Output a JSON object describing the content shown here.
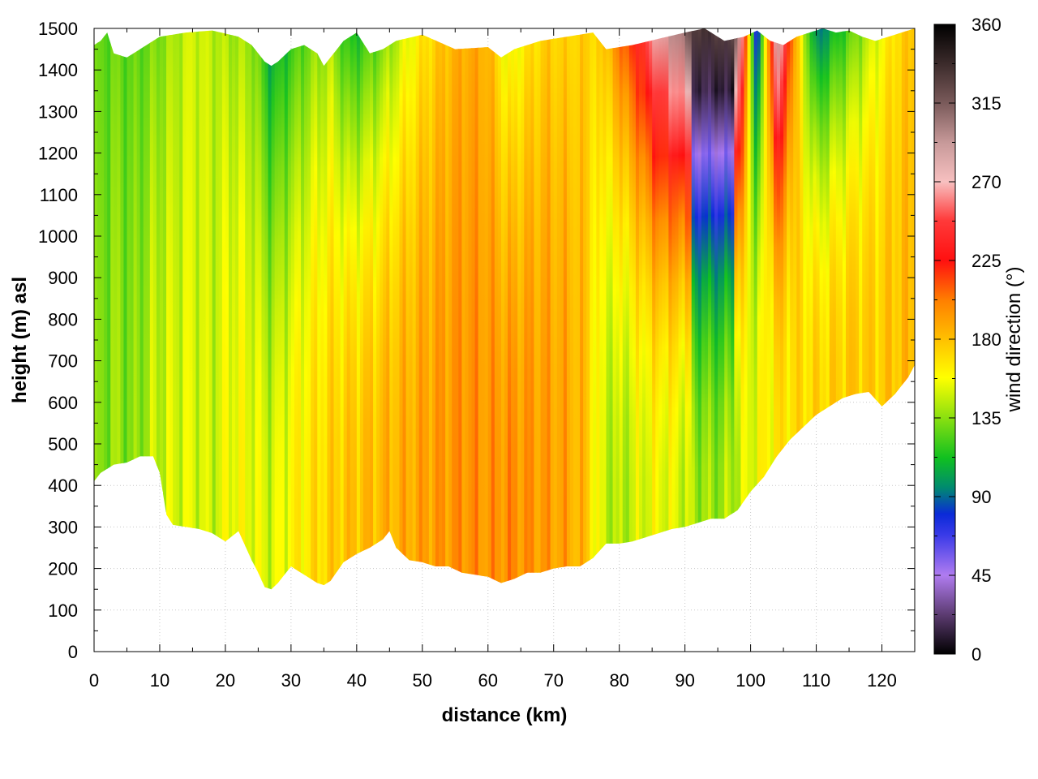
{
  "chart_data": {
    "type": "heatmap",
    "title": "",
    "xlabel": "distance (km)",
    "ylabel": "height (m) asl",
    "colorbar_label": "wind direction (°)",
    "xlim": [
      0,
      125
    ],
    "ylim": [
      0,
      1500
    ],
    "clim": [
      0,
      360
    ],
    "x_ticks": [
      0,
      10,
      20,
      30,
      40,
      50,
      60,
      70,
      80,
      90,
      100,
      110,
      120
    ],
    "y_ticks": [
      0,
      100,
      200,
      300,
      400,
      500,
      600,
      700,
      800,
      900,
      1000,
      1100,
      1200,
      1300,
      1400,
      1500
    ],
    "colorbar_ticks": [
      0,
      45,
      90,
      135,
      180,
      225,
      270,
      315,
      360
    ],
    "grid": true,
    "colormap_stops": [
      {
        "value": 0,
        "color": "#000000"
      },
      {
        "value": 22,
        "color": "#5a3a6e"
      },
      {
        "value": 45,
        "color": "#b07cf0"
      },
      {
        "value": 68,
        "color": "#3a3ae8"
      },
      {
        "value": 80,
        "color": "#0a2ad8"
      },
      {
        "value": 95,
        "color": "#008a70"
      },
      {
        "value": 112,
        "color": "#10c020"
      },
      {
        "value": 135,
        "color": "#8ae010"
      },
      {
        "value": 158,
        "color": "#ffff00"
      },
      {
        "value": 180,
        "color": "#ffc000"
      },
      {
        "value": 202,
        "color": "#ff8000"
      },
      {
        "value": 225,
        "color": "#ff1010"
      },
      {
        "value": 248,
        "color": "#ff3a3a"
      },
      {
        "value": 270,
        "color": "#f7c0c0"
      },
      {
        "value": 292,
        "color": "#c89a9a"
      },
      {
        "value": 315,
        "color": "#7a5a5a"
      },
      {
        "value": 338,
        "color": "#3a2a2a"
      },
      {
        "value": 360,
        "color": "#000000"
      }
    ],
    "terrain_height": {
      "x": [
        0,
        1,
        3,
        5,
        7,
        9,
        10,
        11,
        12,
        14,
        16,
        18,
        20,
        22,
        24,
        25,
        26,
        27,
        28,
        30,
        32,
        34,
        35,
        36,
        38,
        40,
        42,
        44,
        45,
        46,
        48,
        50,
        52,
        54,
        56,
        58,
        60,
        62,
        64,
        66,
        68,
        70,
        72,
        74,
        76,
        78,
        80,
        82,
        84,
        86,
        88,
        90,
        92,
        94,
        96,
        98,
        100,
        102,
        104,
        106,
        108,
        110,
        112,
        114,
        116,
        118,
        120,
        122,
        124,
        125
      ],
      "y": [
        410,
        430,
        450,
        455,
        470,
        470,
        430,
        330,
        305,
        300,
        295,
        285,
        265,
        290,
        220,
        190,
        155,
        150,
        165,
        205,
        185,
        165,
        160,
        170,
        215,
        235,
        250,
        270,
        290,
        250,
        220,
        215,
        205,
        205,
        190,
        185,
        180,
        165,
        175,
        190,
        190,
        200,
        205,
        205,
        225,
        260,
        260,
        265,
        275,
        285,
        295,
        300,
        310,
        320,
        320,
        340,
        385,
        420,
        470,
        510,
        540,
        570,
        590,
        610,
        620,
        625,
        590,
        620,
        660,
        690
      ]
    },
    "column_top_height": {
      "x": [
        0,
        1,
        2,
        3,
        5,
        8,
        10,
        14,
        18,
        22,
        24,
        26,
        27,
        28,
        30,
        32,
        34,
        35,
        36,
        38,
        40,
        42,
        44,
        46,
        50,
        55,
        60,
        62,
        64,
        68,
        72,
        76,
        78,
        82,
        86,
        90,
        93,
        96,
        99,
        101,
        103,
        105,
        107,
        109,
        111,
        113,
        115,
        117,
        119,
        121,
        123,
        125
      ],
      "y": [
        1460,
        1470,
        1490,
        1440,
        1430,
        1460,
        1480,
        1490,
        1495,
        1480,
        1460,
        1420,
        1410,
        1420,
        1450,
        1460,
        1440,
        1410,
        1430,
        1470,
        1490,
        1440,
        1450,
        1470,
        1485,
        1450,
        1455,
        1430,
        1450,
        1470,
        1480,
        1490,
        1450,
        1460,
        1475,
        1490,
        1500,
        1470,
        1480,
        1495,
        1470,
        1460,
        1480,
        1490,
        1500,
        1490,
        1495,
        1480,
        1470,
        1480,
        1490,
        1500
      ]
    },
    "direction_profile": {
      "x": [
        0,
        3,
        6,
        9,
        12,
        15,
        18,
        21,
        24,
        27,
        30,
        33,
        36,
        39,
        42,
        45,
        48,
        51,
        54,
        57,
        60,
        63,
        66,
        69,
        72,
        75,
        77,
        80,
        83,
        86,
        89,
        92,
        95,
        98,
        101,
        104,
        107,
        110,
        113,
        116,
        119,
        122,
        125
      ],
      "low_deg": [
        128,
        138,
        132,
        145,
        150,
        152,
        147,
        158,
        155,
        150,
        160,
        168,
        175,
        180,
        182,
        185,
        188,
        192,
        195,
        197,
        194,
        198,
        196,
        192,
        190,
        180,
        150,
        140,
        150,
        155,
        150,
        140,
        138,
        145,
        158,
        165,
        170,
        172,
        175,
        178,
        175,
        180,
        182
      ],
      "high_deg": [
        125,
        128,
        125,
        130,
        140,
        150,
        145,
        140,
        138,
        100,
        115,
        130,
        140,
        110,
        120,
        135,
        155,
        170,
        182,
        188,
        185,
        150,
        165,
        175,
        172,
        175,
        172,
        205,
        235,
        280,
        300,
        335,
        330,
        320,
        60,
        300,
        180,
        90,
        110,
        130,
        150,
        170,
        180
      ]
    }
  }
}
